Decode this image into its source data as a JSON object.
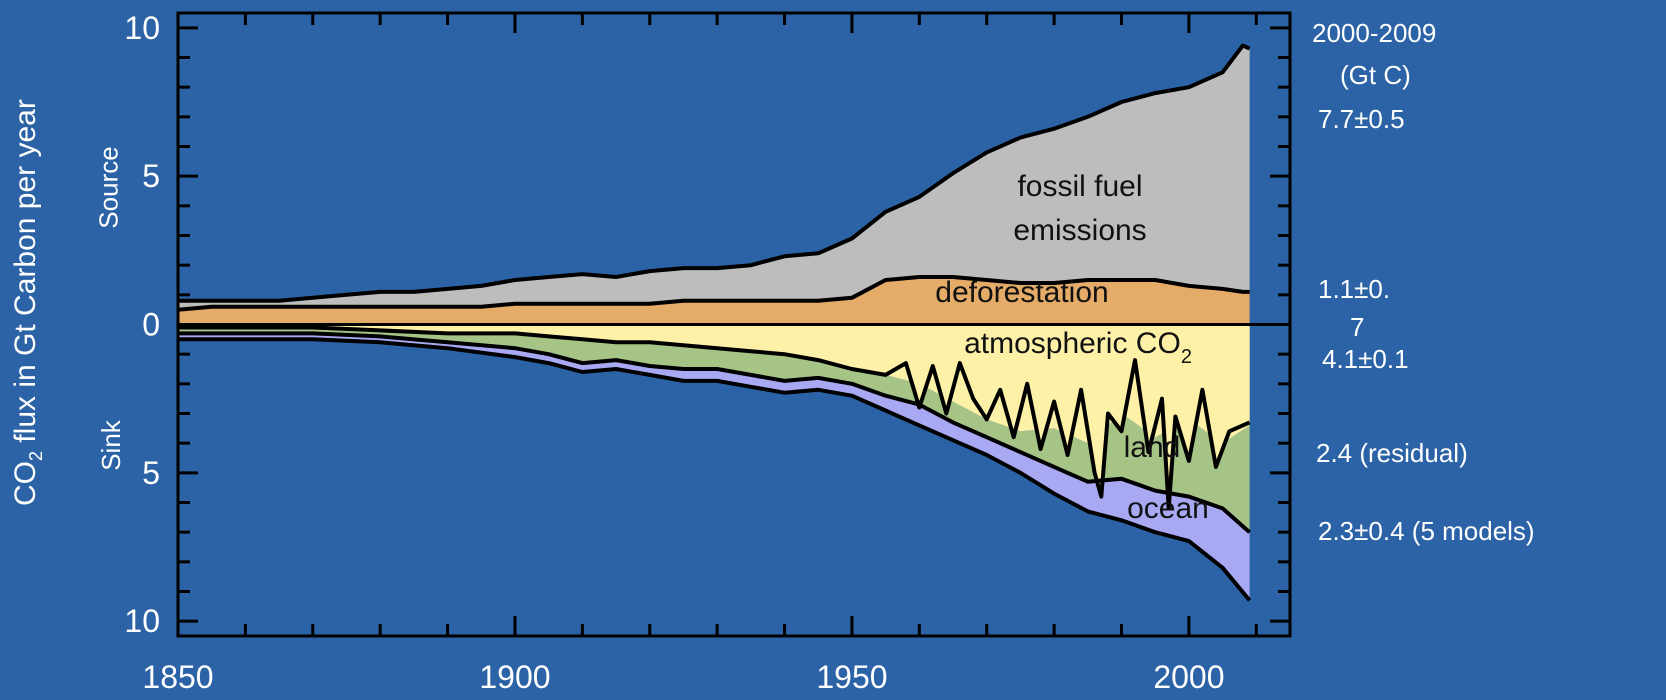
{
  "colors": {
    "background": "#2b63a6",
    "fossil": "#bdbdbd",
    "deforestation": "#e5ac69",
    "atmospheric": "#fdf1a8",
    "land": "#a7c487",
    "ocean": "#a9a8f3"
  },
  "y_axis": {
    "label_pre": "CO",
    "label_sub": "2",
    "label_post": " flux  in Gt Carbon per year",
    "source_label": "Source",
    "sink_label": "Sink"
  },
  "right_panel": {
    "period": "2000-2009",
    "unit": "(Gt C)",
    "fossil": "7.7±0.5",
    "deforestation_line1": "1.1±0.",
    "deforestation_line2": "7",
    "atmospheric": "4.1±0.1",
    "land": "2.4 (residual)",
    "ocean": "2.3±0.4 (5 models)"
  },
  "chart_data": {
    "type": "area",
    "xlim": [
      1850,
      2015
    ],
    "ylim": [
      -10.5,
      10.5
    ],
    "x_ticks": [
      "1850",
      "1900",
      "1950",
      "2000"
    ],
    "y_ticks": [
      "10",
      "5",
      "0",
      "5",
      "10"
    ],
    "annotations": {
      "fossil_1": "fossil fuel",
      "fossil_2": "emissions",
      "deforestation": "deforestation",
      "atmospheric": "atmospheric CO",
      "atmospheric_sub": "2",
      "land": "land",
      "ocean": "ocean"
    },
    "sources": {
      "years": [
        1850,
        1855,
        1860,
        1865,
        1870,
        1875,
        1880,
        1885,
        1890,
        1895,
        1900,
        1905,
        1910,
        1915,
        1920,
        1925,
        1930,
        1935,
        1940,
        1945,
        1950,
        1955,
        1960,
        1965,
        1970,
        1975,
        1980,
        1985,
        1990,
        1995,
        2000,
        2005,
        2008,
        2009
      ],
      "deforestation": [
        0.5,
        0.6,
        0.6,
        0.6,
        0.6,
        0.6,
        0.6,
        0.6,
        0.6,
        0.6,
        0.7,
        0.7,
        0.7,
        0.7,
        0.7,
        0.8,
        0.8,
        0.8,
        0.8,
        0.8,
        0.9,
        1.5,
        1.6,
        1.6,
        1.5,
        1.4,
        1.4,
        1.5,
        1.5,
        1.5,
        1.3,
        1.2,
        1.1,
        1.1
      ],
      "fossil_top": [
        0.8,
        0.8,
        0.8,
        0.8,
        0.9,
        1.0,
        1.1,
        1.1,
        1.2,
        1.3,
        1.5,
        1.6,
        1.7,
        1.6,
        1.8,
        1.9,
        1.9,
        2.0,
        2.3,
        2.4,
        2.9,
        3.8,
        4.3,
        5.1,
        5.8,
        6.3,
        6.6,
        7.0,
        7.5,
        7.8,
        8.0,
        8.5,
        9.4,
        9.3
      ]
    },
    "sinks": {
      "years": [
        1850,
        1860,
        1870,
        1880,
        1890,
        1900,
        1905,
        1910,
        1915,
        1920,
        1925,
        1930,
        1935,
        1940,
        1945,
        1950,
        1955,
        1960,
        1965,
        1970,
        1975,
        1980,
        1985,
        1990,
        1995,
        2000,
        2005,
        2009
      ],
      "atmospheric_bottom": [
        0.1,
        0.1,
        0.1,
        0.2,
        0.3,
        0.3,
        0.4,
        0.5,
        0.6,
        0.6,
        0.7,
        0.8,
        0.9,
        1.0,
        1.2,
        1.5,
        1.7,
        2.0,
        2.6,
        3.2,
        3.6,
        3.5,
        4.0,
        3.0,
        3.8,
        3.2,
        4.0,
        3.4
      ],
      "land_bottom": [
        0.3,
        0.3,
        0.3,
        0.4,
        0.6,
        0.8,
        1.0,
        1.3,
        1.2,
        1.4,
        1.5,
        1.5,
        1.7,
        1.9,
        1.8,
        2.0,
        2.4,
        2.7,
        3.3,
        3.8,
        4.3,
        4.8,
        5.3,
        5.2,
        5.6,
        5.8,
        6.2,
        7.0
      ],
      "ocean_bottom": [
        0.5,
        0.5,
        0.5,
        0.6,
        0.8,
        1.1,
        1.3,
        1.6,
        1.5,
        1.7,
        1.9,
        1.9,
        2.1,
        2.3,
        2.2,
        2.4,
        2.9,
        3.4,
        3.9,
        4.4,
        5.0,
        5.7,
        6.3,
        6.6,
        7.0,
        7.3,
        8.2,
        9.3
      ]
    },
    "atmospheric_noise": {
      "years": [
        1958,
        1960,
        1962,
        1964,
        1966,
        1968,
        1970,
        1972,
        1974,
        1976,
        1978,
        1980,
        1982,
        1984,
        1986,
        1987,
        1988,
        1990,
        1992,
        1994,
        1996,
        1997,
        1998,
        2000,
        2002,
        2004,
        2006,
        2009
      ],
      "values": [
        1.3,
        2.8,
        1.4,
        3.0,
        1.3,
        2.5,
        3.2,
        2.2,
        3.8,
        2.0,
        4.2,
        2.6,
        4.4,
        2.2,
        5.0,
        5.8,
        3.0,
        3.6,
        1.2,
        4.3,
        2.5,
        6.2,
        3.1,
        4.6,
        2.2,
        4.8,
        3.6,
        3.3
      ]
    }
  }
}
